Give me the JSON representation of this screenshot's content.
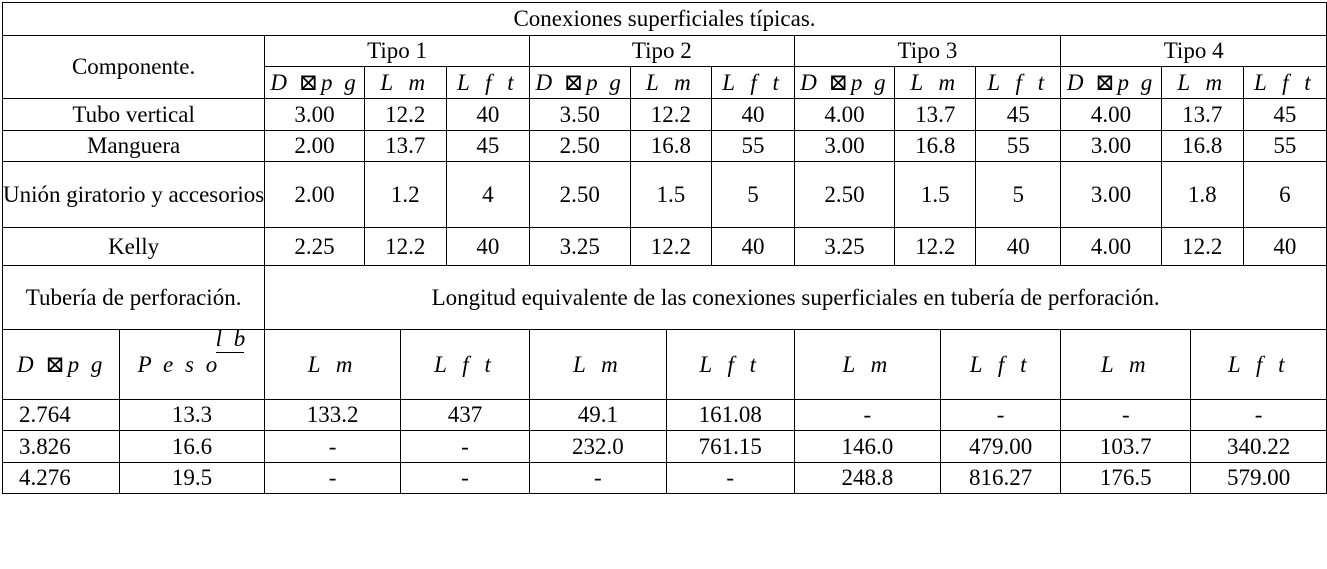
{
  "title": "Conexiones superficiales típicas.",
  "header": {
    "componente": "Componente.",
    "types": [
      "Tipo 1",
      "Tipo 2",
      "Tipo 3",
      "Tipo 4"
    ],
    "sub": [
      "D ⊠p g",
      "L m",
      "L f t"
    ]
  },
  "components": [
    {
      "name": "Tubo vertical",
      "values": [
        "3.00",
        "12.2",
        "40",
        "3.50",
        "12.2",
        "40",
        "4.00",
        "13.7",
        "45",
        "4.00",
        "13.7",
        "45"
      ]
    },
    {
      "name": "Manguera",
      "values": [
        "2.00",
        "13.7",
        "45",
        "2.50",
        "16.8",
        "55",
        "3.00",
        "16.8",
        "55",
        "3.00",
        "16.8",
        "55"
      ]
    },
    {
      "name": "Unión giratorio y accesorios",
      "values": [
        "2.00",
        "1.2",
        "4",
        "2.50",
        "1.5",
        "5",
        "2.50",
        "1.5",
        "5",
        "3.00",
        "1.8",
        "6"
      ]
    },
    {
      "name": "Kelly",
      "values": [
        "2.25",
        "12.2",
        "40",
        "3.25",
        "12.2",
        "40",
        "3.25",
        "12.2",
        "40",
        "4.00",
        "12.2",
        "40"
      ]
    }
  ],
  "pipe_section": {
    "label": "Tubería de perforación.",
    "caption": "Longitud equivalente de las conexiones superficiales en tubería de perforación.",
    "head_d": "D ⊠p g",
    "head_peso": "P e s o",
    "head_peso_unit": "l b",
    "head_lm": "L m",
    "head_lft": "L f t",
    "rows": [
      [
        "2.764",
        "13.3",
        "133.2",
        "437",
        "49.1",
        "161.08",
        "-",
        "-",
        "-",
        "-"
      ],
      [
        "3.826",
        "16.6",
        "-",
        "-",
        "232.0",
        "761.15",
        "146.0",
        "479.00",
        "103.7",
        "340.22"
      ],
      [
        "4.276",
        "19.5",
        "-",
        "-",
        "-",
        "-",
        "248.8",
        "816.27",
        "176.5",
        "579.00"
      ]
    ]
  }
}
